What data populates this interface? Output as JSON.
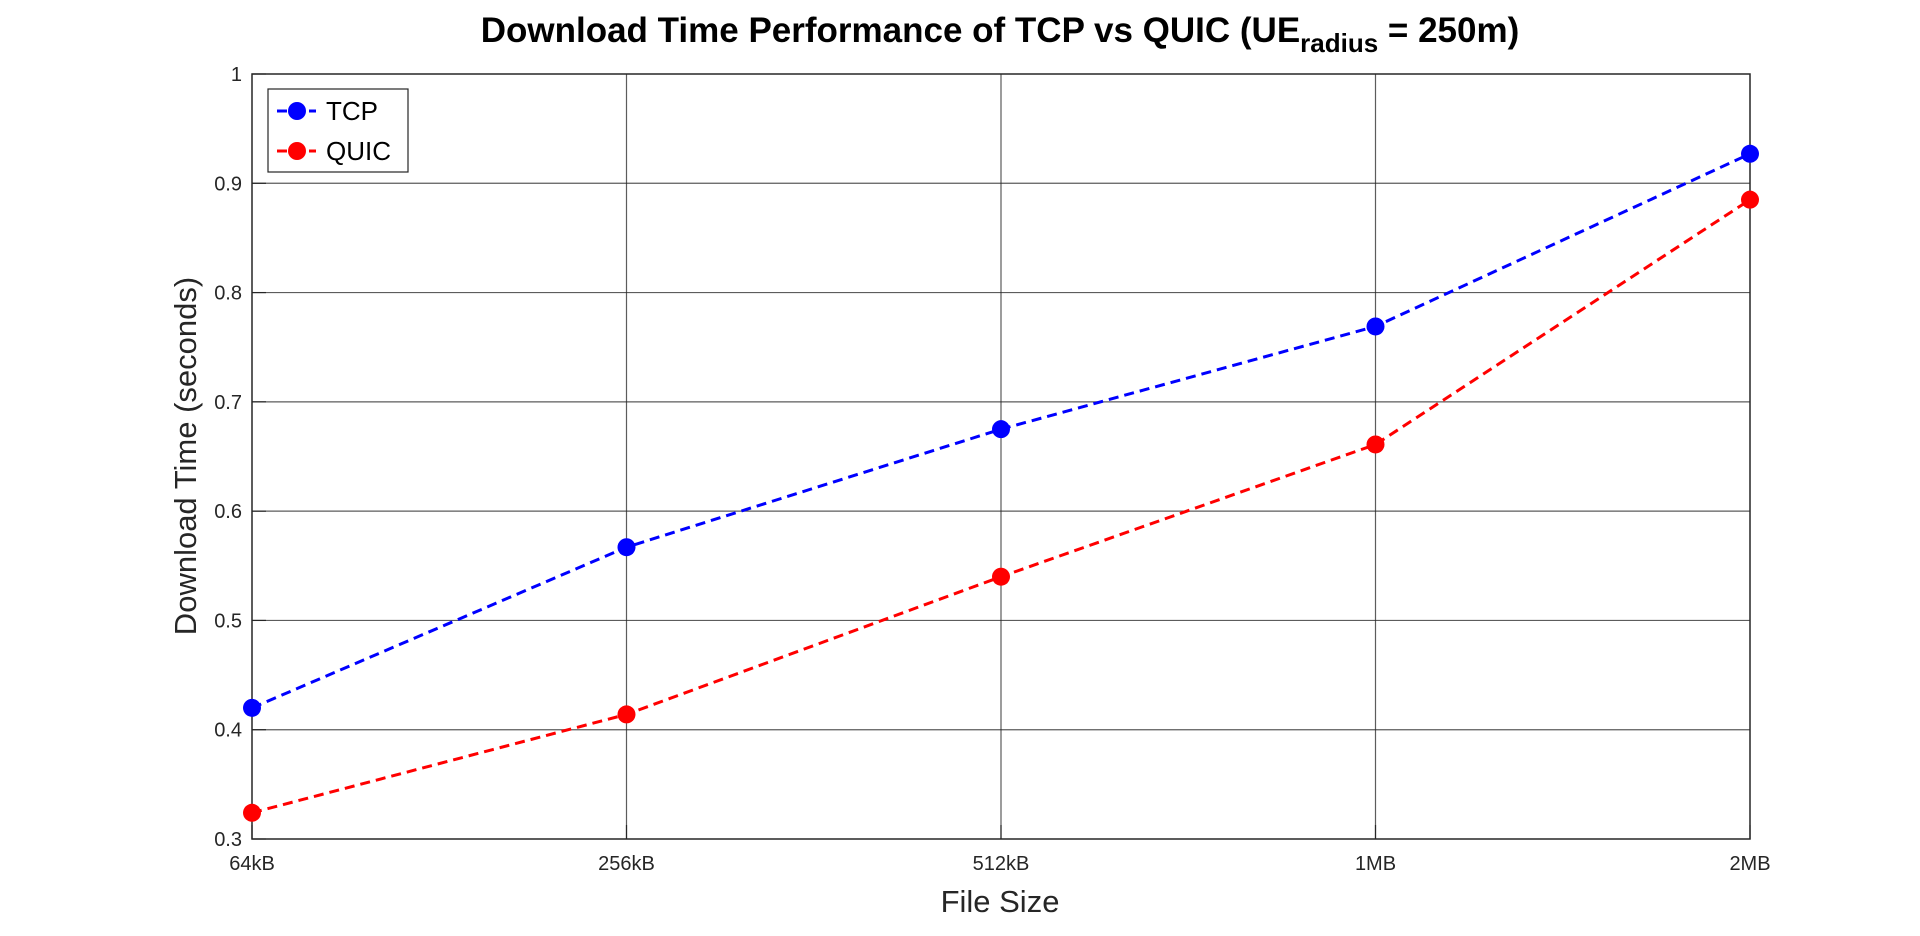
{
  "chart_data": {
    "type": "line",
    "title": {
      "prefix": "Download Time Performance of TCP vs QUIC (UE",
      "subscript": "radius",
      "suffix": " = 250m)"
    },
    "xlabel": "File Size",
    "ylabel": "Download Time (seconds)",
    "categories": [
      "64kB",
      "256kB",
      "512kB",
      "1MB",
      "2MB"
    ],
    "ylim": [
      0.3,
      1
    ],
    "yticks": [
      "0.3",
      "0.4",
      "0.5",
      "0.6",
      "0.7",
      "0.8",
      "0.9",
      "1"
    ],
    "grid": true,
    "legend_position": "top-left",
    "series": [
      {
        "name": "TCP",
        "color": "#0000ff",
        "line_style": "dashed",
        "marker": "circle",
        "values": [
          0.42,
          0.567,
          0.675,
          0.769,
          0.927
        ]
      },
      {
        "name": "QUIC",
        "color": "#ff0000",
        "line_style": "dashed",
        "marker": "circle",
        "values": [
          0.324,
          0.414,
          0.54,
          0.661,
          0.885
        ]
      }
    ]
  }
}
